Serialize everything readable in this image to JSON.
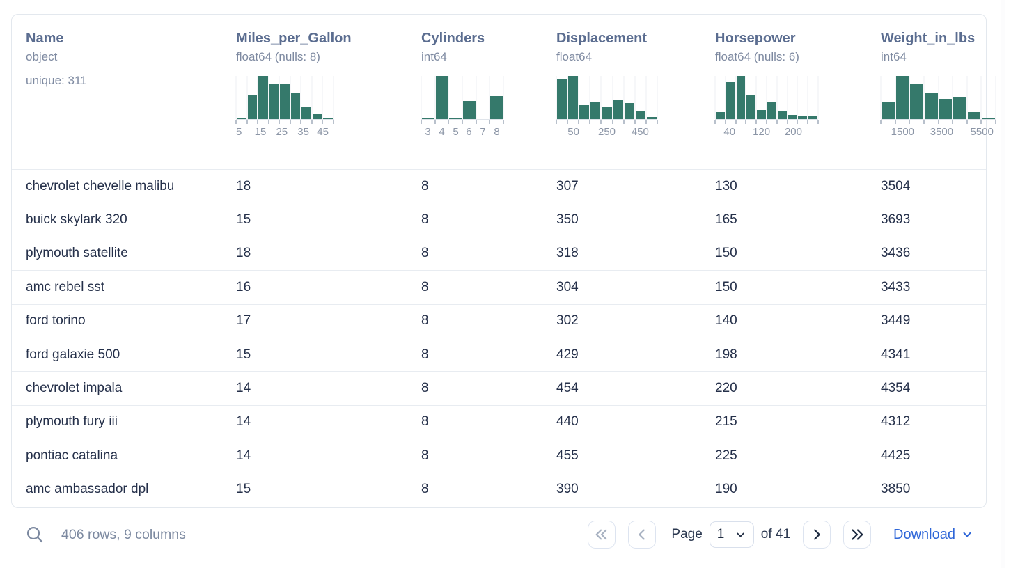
{
  "table": {
    "columns": [
      {
        "name": "Name",
        "type": "object",
        "extra": "unique: 311",
        "histogram": null
      },
      {
        "name": "Miles_per_Gallon",
        "type": "float64 (nulls: 8)",
        "extra": null,
        "histogram": {
          "bars": [
            3,
            56,
            100,
            81,
            81,
            61,
            29,
            11,
            2
          ],
          "ticks": [
            {
              "label": "5",
              "pos": 3
            },
            {
              "label": "15",
              "pos": 25
            },
            {
              "label": "25",
              "pos": 47
            },
            {
              "label": "35",
              "pos": 69
            },
            {
              "label": "45",
              "pos": 89
            }
          ]
        }
      },
      {
        "name": "Cylinders",
        "type": "int64",
        "extra": null,
        "histogram": {
          "bars": [
            3,
            100,
            2,
            42,
            0,
            53
          ],
          "ticks": [
            {
              "label": "3",
              "pos": 8
            },
            {
              "label": "4",
              "pos": 25
            },
            {
              "label": "5",
              "pos": 42
            },
            {
              "label": "6",
              "pos": 58
            },
            {
              "label": "7",
              "pos": 75
            },
            {
              "label": "8",
              "pos": 92
            }
          ]
        }
      },
      {
        "name": "Displacement",
        "type": "float64",
        "extra": null,
        "histogram": {
          "bars": [
            92,
            100,
            33,
            40,
            28,
            43,
            37,
            17,
            5
          ],
          "ticks": [
            {
              "label": "50",
              "pos": 17
            },
            {
              "label": "250",
              "pos": 50
            },
            {
              "label": "450",
              "pos": 83
            }
          ]
        }
      },
      {
        "name": "Horsepower",
        "type": "float64 (nulls: 6)",
        "extra": null,
        "histogram": {
          "bars": [
            16,
            86,
            100,
            57,
            21,
            41,
            17,
            10,
            7,
            6
          ],
          "ticks": [
            {
              "label": "40",
              "pos": 14
            },
            {
              "label": "120",
              "pos": 45
            },
            {
              "label": "200",
              "pos": 76
            }
          ]
        }
      },
      {
        "name": "Weight_in_lbs",
        "type": "int64",
        "extra": null,
        "histogram": {
          "bars": [
            41,
            100,
            83,
            60,
            47,
            50,
            16,
            2
          ],
          "ticks": [
            {
              "label": "1500",
              "pos": 19
            },
            {
              "label": "3500",
              "pos": 53
            },
            {
              "label": "5500",
              "pos": 88
            }
          ]
        }
      }
    ],
    "rows": [
      [
        "chevrolet chevelle malibu",
        "18",
        "8",
        "307",
        "130",
        "3504"
      ],
      [
        "buick skylark 320",
        "15",
        "8",
        "350",
        "165",
        "3693"
      ],
      [
        "plymouth satellite",
        "18",
        "8",
        "318",
        "150",
        "3436"
      ],
      [
        "amc rebel sst",
        "16",
        "8",
        "304",
        "150",
        "3433"
      ],
      [
        "ford torino",
        "17",
        "8",
        "302",
        "140",
        "3449"
      ],
      [
        "ford galaxie 500",
        "15",
        "8",
        "429",
        "198",
        "4341"
      ],
      [
        "chevrolet impala",
        "14",
        "8",
        "454",
        "220",
        "4354"
      ],
      [
        "plymouth fury iii",
        "14",
        "8",
        "440",
        "215",
        "4312"
      ],
      [
        "pontiac catalina",
        "14",
        "8",
        "455",
        "225",
        "4425"
      ],
      [
        "amc ambassador dpl",
        "15",
        "8",
        "390",
        "190",
        "3850"
      ]
    ]
  },
  "footer": {
    "summary": "406 rows, 9 columns",
    "page_label": "Page",
    "page_value": "1",
    "of_label": "of 41",
    "download_label": "Download"
  },
  "colors": {
    "histogram_bar": "#35796B",
    "accent_blue": "#2e66d8",
    "header_text": "#5b6d90",
    "row_text": "#25304a"
  }
}
